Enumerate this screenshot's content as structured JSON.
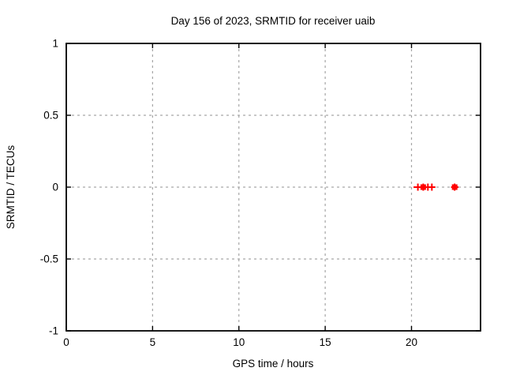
{
  "window": {
    "background": "#ffffff"
  },
  "chart_data": {
    "type": "scatter",
    "title": "Day 156 of 2023, SRMTID for receiver uaib",
    "xlabel": "GPS time / hours",
    "ylabel": "SRMTID / TECUs",
    "xlim": [
      0,
      24
    ],
    "ylim": [
      -1,
      1
    ],
    "xticks": [
      0,
      5,
      10,
      15,
      20
    ],
    "xtick_labels": [
      "0",
      "5",
      "10",
      "15",
      "20"
    ],
    "yticks": [
      -1,
      -0.5,
      0,
      0.5,
      1
    ],
    "ytick_labels": [
      "-1",
      "-0.5",
      "0",
      "0.5",
      "1"
    ],
    "grid": "dashed",
    "legend": "none",
    "background_color": "#ffffff",
    "axis_color": "#000000",
    "grid_color": "#a6a6a6",
    "data_color": "#ff0000",
    "series": [
      {
        "name": "srmtid-plus-points",
        "marker": "plus",
        "color": "#ff0000",
        "x": [
          20.37,
          20.68,
          20.95,
          21.18,
          22.5
        ],
        "y": [
          0,
          0,
          0,
          0,
          0
        ]
      },
      {
        "name": "srmtid-square-points",
        "marker": "filled-square",
        "color": "#ff0000",
        "x": [
          20.68,
          22.5
        ],
        "y": [
          0,
          0
        ]
      }
    ],
    "xerror_bars": [
      {
        "y": 0,
        "x_min": 20.12,
        "x_max": 21.33
      },
      {
        "y": 0,
        "x_min": 22.3,
        "x_max": 22.72
      }
    ]
  }
}
